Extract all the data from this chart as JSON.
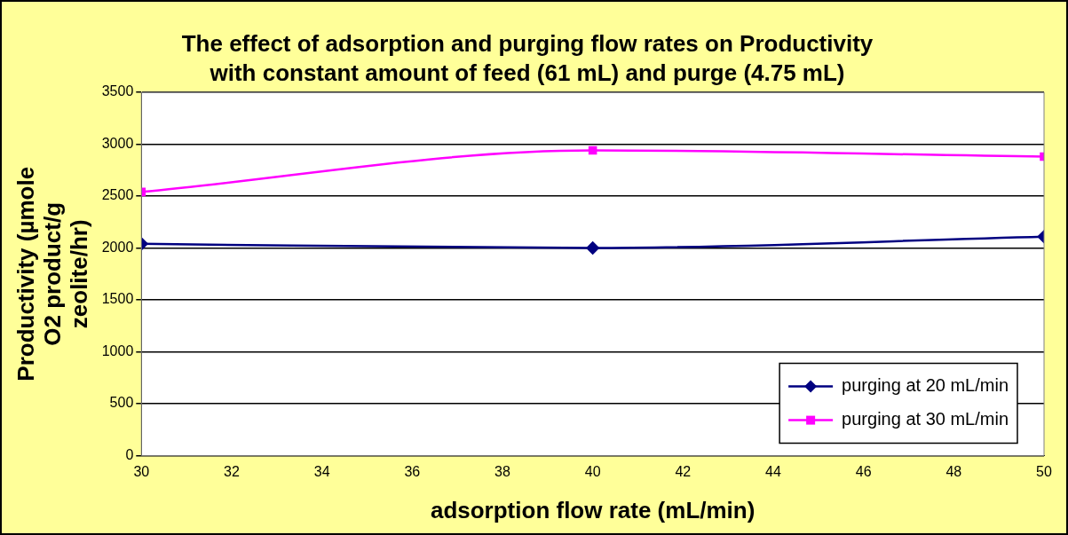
{
  "chart_data": {
    "type": "line",
    "title": "The effect of adsorption and purging flow rates on Productivity with constant amount of feed (61 mL) and purge (4.75 mL)",
    "xlabel": "adsorption flow rate (mL/min)",
    "ylabel": "Productivity (µmole O2 product/g zeolite/hr)",
    "x": [
      30,
      40,
      50
    ],
    "series": [
      {
        "name": "purging at 20 mL/min",
        "color": "#000080",
        "marker": "diamond",
        "values": [
          2040,
          2000,
          2110
        ]
      },
      {
        "name": "purging at 30 mL/min",
        "color": "#ff00ff",
        "marker": "square",
        "values": [
          2540,
          2940,
          2880
        ]
      }
    ],
    "xlim": [
      30,
      50
    ],
    "xticks": [
      30,
      32,
      34,
      36,
      38,
      40,
      42,
      44,
      46,
      48,
      50
    ],
    "ylim": [
      0,
      3500
    ],
    "yticks": [
      0,
      500,
      1000,
      1500,
      2000,
      2500,
      3000,
      3500
    ],
    "grid": "y",
    "legend": "bottom right"
  }
}
